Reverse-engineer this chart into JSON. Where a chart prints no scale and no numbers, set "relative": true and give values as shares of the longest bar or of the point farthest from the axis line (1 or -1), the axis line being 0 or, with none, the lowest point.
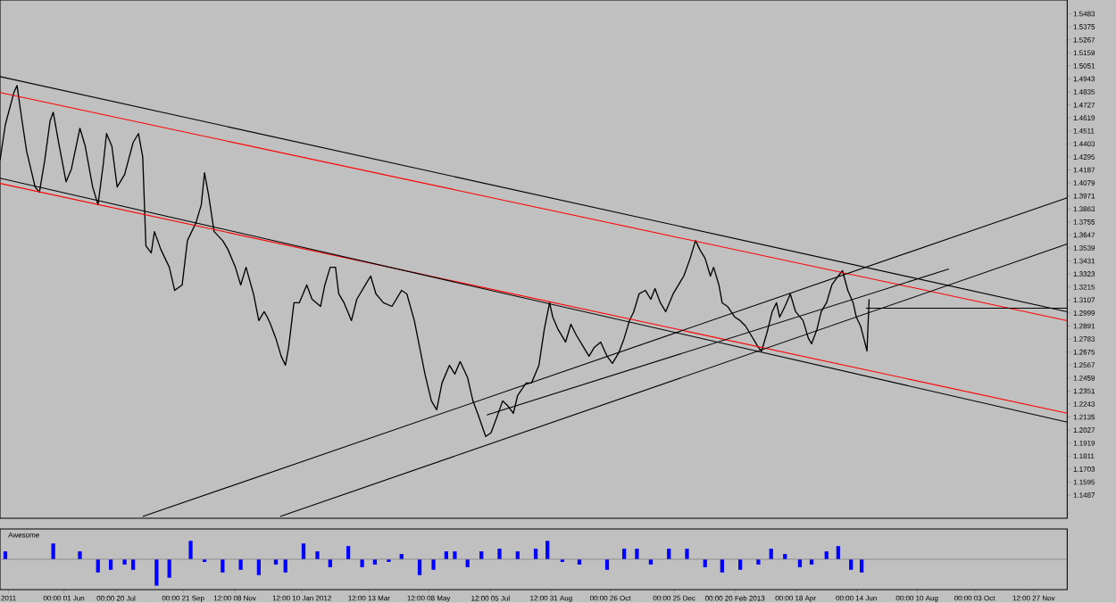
{
  "chart_data": [
    {
      "type": "line",
      "xlim": [
        "2011-04-02",
        "2013-12-29"
      ],
      "ylim": [
        1.1295,
        1.5598
      ],
      "tick_labels": "y",
      "yticks": [
        1.5483,
        1.5375,
        1.5267,
        1.5159,
        1.5051,
        1.4943,
        1.4835,
        1.4727,
        1.4619,
        1.4511,
        1.4403,
        1.4295,
        1.4187,
        1.4079,
        1.3971,
        1.3863,
        1.3755,
        1.3647,
        1.3539,
        1.3431,
        1.3323,
        1.3215,
        1.3107,
        1.2999,
        1.2891,
        1.2783,
        1.2675,
        1.2567,
        1.2459,
        1.2351,
        1.2243,
        1.2135,
        1.2027,
        1.1919,
        1.1811,
        1.1703,
        1.1595,
        1.1487
      ],
      "series": [
        {
          "color": "#000000",
          "x": [
            "2011-04-02",
            "2011-04-07",
            "2011-04-15",
            "2011-04-18",
            "2011-04-22",
            "2011-04-27",
            "2011-05-05",
            "2011-05-09",
            "2011-05-14",
            "2011-05-19",
            "2011-05-22",
            "2011-05-27",
            "2011-06-03",
            "2011-06-08",
            "2011-06-16",
            "2011-06-21",
            "2011-06-28",
            "2011-07-03",
            "2011-07-08",
            "2011-07-11",
            "2011-07-16",
            "2011-07-21",
            "2011-07-28",
            "2011-08-05",
            "2011-08-10",
            "2011-08-14",
            "2011-08-17",
            "2011-08-22",
            "2011-08-25",
            "2011-08-31",
            "2011-09-08",
            "2011-09-13",
            "2011-09-20",
            "2011-09-25",
            "2011-10-03",
            "2011-10-08",
            "2011-10-11",
            "2011-10-15",
            "2011-10-20",
            "2011-10-28",
            "2011-11-02",
            "2011-11-09",
            "2011-11-14",
            "2011-11-19",
            "2011-11-26",
            "2011-12-01",
            "2011-12-06",
            "2011-12-09",
            "2011-12-12",
            "2011-12-17",
            "2011-12-22",
            "2011-12-26",
            "2011-12-29",
            "2012-01-03",
            "2012-01-08",
            "2012-01-15",
            "2012-01-20",
            "2012-01-28",
            "2012-02-01",
            "2012-02-06",
            "2012-02-11",
            "2012-02-14",
            "2012-02-19",
            "2012-02-26",
            "2012-03-02",
            "2012-03-10",
            "2012-03-15",
            "2012-03-20",
            "2012-03-27",
            "2012-04-04",
            "2012-04-13",
            "2012-04-18",
            "2012-04-25",
            "2012-04-30",
            "2012-05-05",
            "2012-05-11",
            "2012-05-16",
            "2012-05-21",
            "2012-05-28",
            "2012-06-02",
            "2012-06-07",
            "2012-06-14",
            "2012-06-19",
            "2012-06-24",
            "2012-07-01",
            "2012-07-06",
            "2012-07-11",
            "2012-07-17",
            "2012-07-22",
            "2012-07-27",
            "2012-07-31",
            "2012-08-08",
            "2012-08-13",
            "2012-08-20",
            "2012-08-25",
            "2012-08-30",
            "2012-09-02",
            "2012-09-07",
            "2012-09-14",
            "2012-09-19",
            "2012-09-24",
            "2012-10-01",
            "2012-10-06",
            "2012-10-11",
            "2012-10-17",
            "2012-10-23",
            "2012-10-28",
            "2012-11-03",
            "2012-11-08",
            "2012-11-13",
            "2012-11-17",
            "2012-11-22",
            "2012-11-28",
            "2012-12-03",
            "2012-12-07",
            "2012-12-12",
            "2012-12-17",
            "2012-12-24",
            "2012-12-29",
            "2013-01-03",
            "2013-01-09",
            "2013-01-14",
            "2013-01-18",
            "2013-01-23",
            "2013-01-28",
            "2013-01-31",
            "2013-02-05",
            "2013-02-08",
            "2013-02-13",
            "2013-02-20",
            "2013-02-25",
            "2013-03-02",
            "2013-03-06",
            "2013-03-11",
            "2013-03-14",
            "2013-03-17",
            "2013-03-22",
            "2013-03-27",
            "2013-03-31",
            "2013-04-03",
            "2013-04-08",
            "2013-04-13",
            "2013-04-18",
            "2013-04-25",
            "2013-04-30",
            "2013-05-03",
            "2013-05-08",
            "2013-05-12",
            "2013-05-17",
            "2013-05-22",
            "2013-05-28",
            "2013-06-01",
            "2013-06-06",
            "2013-06-11",
            "2013-06-14",
            "2013-06-18",
            "2013-06-21",
            "2013-06-24",
            "2013-06-26"
          ],
          "values": [
            1.4267,
            1.4563,
            1.4829,
            1.4888,
            1.4637,
            1.4341,
            1.4045,
            1.4001,
            1.4267,
            1.4592,
            1.4666,
            1.4415,
            1.4089,
            1.4193,
            1.4533,
            1.4385,
            1.4045,
            1.3897,
            1.4237,
            1.4489,
            1.4385,
            1.4045,
            1.4149,
            1.4415,
            1.4489,
            1.4296,
            1.3557,
            1.3498,
            1.3675,
            1.3527,
            1.3379,
            1.3187,
            1.3232,
            1.3601,
            1.3749,
            1.3897,
            1.4163,
            1.3971,
            1.3675,
            1.3601,
            1.3527,
            1.3379,
            1.3232,
            1.3379,
            1.3158,
            1.2936,
            1.301,
            1.2965,
            1.2906,
            1.2788,
            1.264,
            1.2566,
            1.2714,
            1.3084,
            1.3084,
            1.3232,
            1.3113,
            1.3054,
            1.3232,
            1.3379,
            1.3379,
            1.3158,
            1.3084,
            1.2936,
            1.3113,
            1.3232,
            1.3306,
            1.3158,
            1.3084,
            1.3054,
            1.3187,
            1.3158,
            1.2936,
            1.2714,
            1.2492,
            1.227,
            1.2196,
            1.2418,
            1.2566,
            1.2492,
            1.2596,
            1.2463,
            1.227,
            1.2152,
            1.1974,
            1.2004,
            1.2122,
            1.227,
            1.2226,
            1.2167,
            1.2315,
            1.2418,
            1.2418,
            1.2566,
            1.2862,
            1.3084,
            1.2965,
            1.2862,
            1.2758,
            1.2906,
            1.2817,
            1.2714,
            1.264,
            1.2714,
            1.2758,
            1.264,
            1.2581,
            1.267,
            1.2788,
            1.2936,
            1.301,
            1.3158,
            1.3187,
            1.3113,
            1.3202,
            1.3084,
            1.301,
            1.3158,
            1.3232,
            1.3306,
            1.3453,
            1.3601,
            1.3527,
            1.3453,
            1.3306,
            1.3379,
            1.3232,
            1.3084,
            1.3054,
            1.2965,
            1.2936,
            1.2891,
            1.2832,
            1.2758,
            1.2714,
            1.2684,
            1.2832,
            1.301,
            1.3084,
            1.2965,
            1.3054,
            1.3158,
            1.301,
            1.2936,
            1.2788,
            1.2744,
            1.2862,
            1.301,
            1.3084,
            1.3232,
            1.3306,
            1.335,
            1.3187,
            1.3084,
            1.2965,
            1.2891,
            1.2788,
            1.2684,
            1.3113
          ]
        },
        {
          "color": "#000000",
          "x": [
            "2011-04-02",
            "2013-12-29"
          ],
          "values": [
            1.4962,
            1.301
          ]
        },
        {
          "color": "#ff0000",
          "x": [
            "2011-04-02",
            "2013-12-29"
          ],
          "values": [
            1.4829,
            1.2936
          ]
        },
        {
          "color": "#ff0000",
          "x": [
            "2011-04-02",
            "2013-12-29"
          ],
          "values": [
            1.4075,
            1.2167
          ]
        },
        {
          "color": "#000000",
          "x": [
            "2011-04-02",
            "2013-12-29"
          ],
          "values": [
            1.4119,
            1.2093
          ]
        },
        {
          "color": "#000000",
          "x": [
            "2011-08-14",
            "2013-12-29"
          ],
          "values": [
            1.1309,
            1.3956
          ]
        },
        {
          "color": "#000000",
          "x": [
            "2012-07-02",
            "2013-09-09"
          ],
          "values": [
            1.2152,
            1.3365
          ]
        },
        {
          "color": "#000000",
          "x": [
            "2011-12-21",
            "2013-12-29"
          ],
          "values": [
            1.1309,
            1.3572
          ]
        },
        {
          "color": "#000000",
          "x": [
            "2013-06-23",
            "2013-12-29"
          ],
          "values": [
            1.3039,
            1.3039
          ]
        }
      ]
    },
    {
      "type": "bar",
      "title": "Awesome",
      "relative": true,
      "color": "#0000ff",
      "tick_labels": "x",
      "xlim": [
        "2011-04-02",
        "2013-12-29"
      ],
      "xticks": [
        {
          "value": "2011-04-10",
          "label": "2011"
        },
        {
          "value": "2011-06-01T00:00",
          "label": "00:00 01 Jun"
        },
        {
          "value": "2011-07-20T00:00",
          "label": "00:00 20 Jul"
        },
        {
          "value": "2011-09-21T00:00",
          "label": "00:00 21 Sep"
        },
        {
          "value": "2011-11-08T12:00",
          "label": "12:00 08 Nov"
        },
        {
          "value": "2012-01-10T12:00",
          "label": "12:00 10 Jan 2012"
        },
        {
          "value": "2012-03-13T12:00",
          "label": "12:00 13 Mar"
        },
        {
          "value": "2012-05-08T12:00",
          "label": "12:00 08 May"
        },
        {
          "value": "2012-07-05T12:00",
          "label": "12:00 05 Jul"
        },
        {
          "value": "2012-08-31T12:00",
          "label": "12:00 31 Aug"
        },
        {
          "value": "2012-10-26T00:00",
          "label": "00:00 26 Oct"
        },
        {
          "value": "2012-12-25T00:00",
          "label": "00:00 25 Dec"
        },
        {
          "value": "2013-02-20T00:00",
          "label": "00:00 20 Feb 2013"
        },
        {
          "value": "2013-04-18T00:00",
          "label": "00:00 18 Apr"
        },
        {
          "value": "2013-06-14T00:00",
          "label": "00:00 14 Jun"
        },
        {
          "value": "2013-08-10T00:00",
          "label": "00:00 10 Aug"
        },
        {
          "value": "2013-10-03T00:00",
          "label": "00:00 03 Oct"
        },
        {
          "value": "2013-11-27T12:00",
          "label": "12:00 27 Nov"
        }
      ],
      "x": [
        "2011-04-07",
        "2011-05-22",
        "2011-06-16",
        "2011-07-03",
        "2011-07-15",
        "2011-07-28",
        "2011-08-05",
        "2011-08-27",
        "2011-09-08",
        "2011-09-28",
        "2011-10-11",
        "2011-10-28",
        "2011-11-14",
        "2011-12-01",
        "2011-12-17",
        "2011-12-26",
        "2012-01-12",
        "2012-01-25",
        "2012-02-06",
        "2012-02-23",
        "2012-03-07",
        "2012-03-19",
        "2012-04-01",
        "2012-04-13",
        "2012-04-30",
        "2012-05-13",
        "2012-05-25",
        "2012-06-02",
        "2012-06-14",
        "2012-06-27",
        "2012-07-14",
        "2012-07-31",
        "2012-08-17",
        "2012-08-28",
        "2012-09-11",
        "2012-09-27",
        "2012-10-23",
        "2012-11-08",
        "2012-11-20",
        "2012-12-03",
        "2012-12-20",
        "2013-01-06",
        "2013-01-23",
        "2013-02-08",
        "2013-02-25",
        "2013-03-14",
        "2013-03-26",
        "2013-04-08",
        "2013-04-22",
        "2013-05-03",
        "2013-05-17",
        "2013-05-28",
        "2013-06-09",
        "2013-06-19"
      ],
      "values": [
        0.3,
        0.6,
        0.3,
        -0.5,
        -0.4,
        -0.2,
        -0.4,
        -1,
        -0.7,
        0.7,
        -0.1,
        -0.5,
        -0.4,
        -0.6,
        -0.2,
        -0.5,
        0.6,
        0.3,
        -0.3,
        0.5,
        -0.3,
        -0.2,
        -0.1,
        0.2,
        -0.6,
        -0.4,
        0.3,
        0.3,
        -0.3,
        0.3,
        0.4,
        0.3,
        0.4,
        0.7,
        -0.1,
        -0.2,
        -0.4,
        0.4,
        0.4,
        -0.2,
        0.4,
        0.4,
        -0.3,
        -0.5,
        -0.4,
        -0.2,
        0.4,
        0.2,
        -0.3,
        -0.2,
        0.3,
        0.5,
        -0.4,
        -0.5
      ]
    }
  ]
}
